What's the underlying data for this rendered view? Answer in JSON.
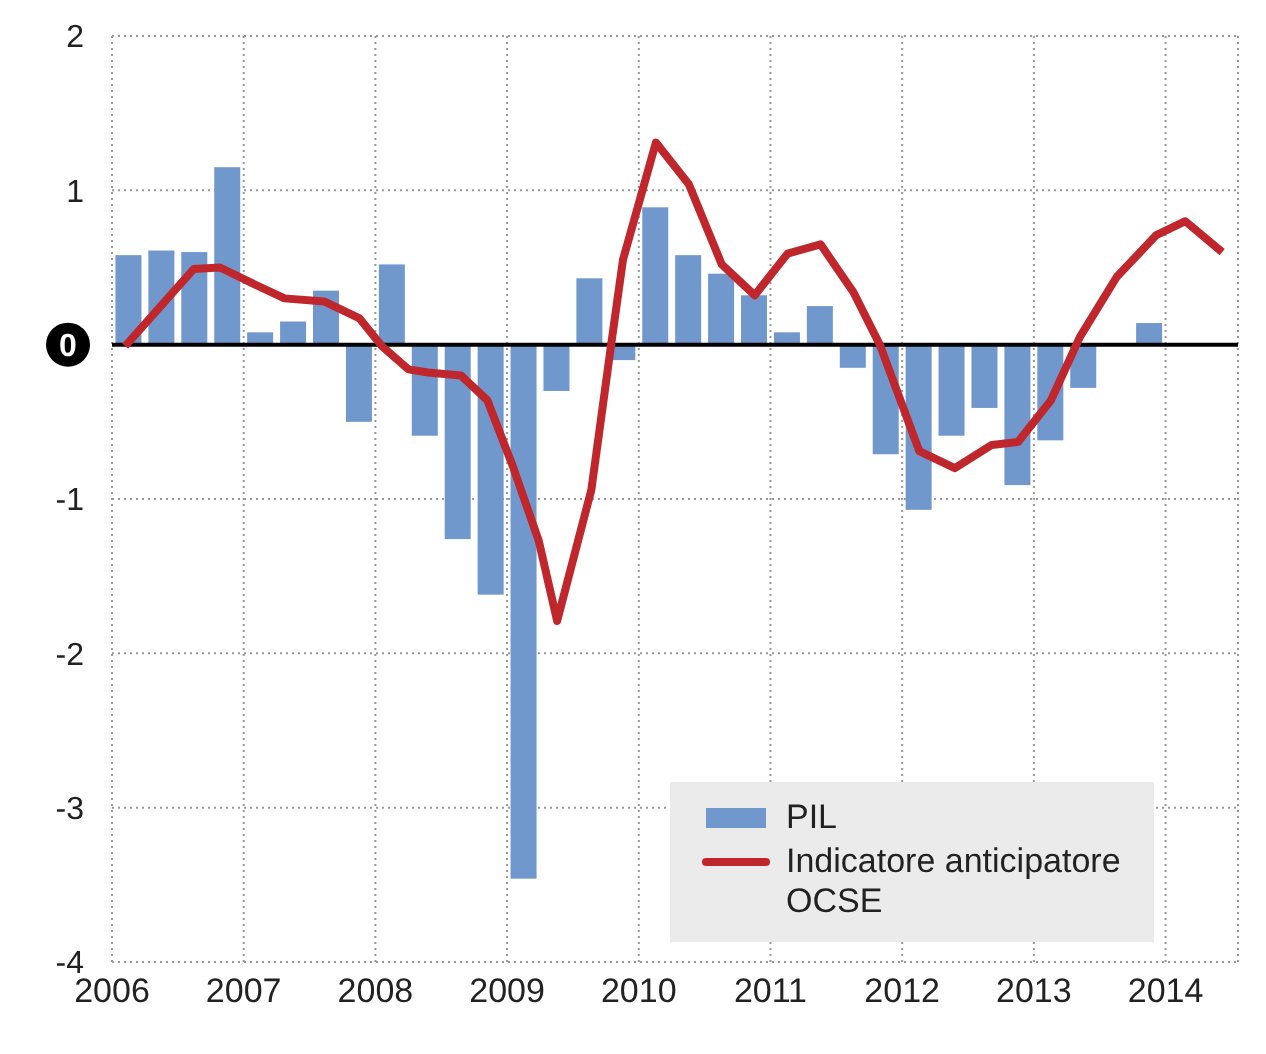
{
  "chart_data": {
    "type": "bar",
    "xlim": [
      2006,
      2014.55
    ],
    "xticks": [
      2006,
      2007,
      2008,
      2009,
      2010,
      2011,
      2012,
      2013,
      2014
    ],
    "ylim": [
      -4,
      2
    ],
    "yticks": [
      -4,
      -3,
      -2,
      -1,
      0,
      1,
      2
    ],
    "grid": true,
    "legend": "bottom right",
    "ref_lines": [
      {
        "axis": "y",
        "value": 0,
        "color": "#000000"
      }
    ],
    "series": [
      {
        "name": "PIL",
        "color": "#7098cc",
        "x": [
          2006.125,
          2006.375,
          2006.625,
          2006.875,
          2007.125,
          2007.375,
          2007.625,
          2007.875,
          2008.125,
          2008.375,
          2008.625,
          2008.875,
          2009.125,
          2009.375,
          2009.625,
          2009.875,
          2010.125,
          2010.375,
          2010.625,
          2010.875,
          2011.125,
          2011.375,
          2011.625,
          2011.875,
          2012.125,
          2012.375,
          2012.625,
          2012.875,
          2013.125,
          2013.375,
          2013.625,
          2013.875
        ],
        "values": [
          0.58,
          0.61,
          0.6,
          1.15,
          0.08,
          0.15,
          0.35,
          -0.5,
          0.52,
          -0.59,
          -1.26,
          -1.62,
          -3.46,
          -0.3,
          0.43,
          -0.1,
          0.89,
          0.58,
          0.46,
          0.32,
          0.08,
          0.25,
          -0.15,
          -0.71,
          -1.07,
          -0.59,
          -0.41,
          -0.91,
          -0.62,
          -0.28,
          null,
          0.14
        ]
      },
      {
        "name": "Indicatore anticipatore OCSE",
        "type": "line",
        "color": "#c0272d",
        "x": [
          2006.1,
          2006.62,
          2006.82,
          2007.06,
          2007.31,
          2007.61,
          2007.88,
          2008.05,
          2008.25,
          2008.4,
          2008.65,
          2008.85,
          2009.04,
          2009.24,
          2009.38,
          2009.64,
          2009.79,
          2009.88,
          2010.13,
          2010.38,
          2010.63,
          2010.88,
          2011.13,
          2011.38,
          2011.63,
          2011.83,
          2012.13,
          2012.4,
          2012.68,
          2012.88,
          2013.13,
          2013.35,
          2013.63,
          2013.93,
          2014.15,
          2014.43
        ],
        "values": [
          -0.01,
          0.49,
          0.5,
          0.4,
          0.3,
          0.28,
          0.17,
          -0.01,
          -0.16,
          -0.18,
          -0.2,
          -0.36,
          -0.78,
          -1.27,
          -1.79,
          -0.94,
          0,
          0.55,
          1.31,
          1.04,
          0.52,
          0.32,
          0.59,
          0.65,
          0.34,
          0,
          -0.69,
          -0.8,
          -0.65,
          -0.63,
          -0.36,
          0.05,
          0.44,
          0.71,
          0.8,
          0.6
        ]
      }
    ]
  }
}
